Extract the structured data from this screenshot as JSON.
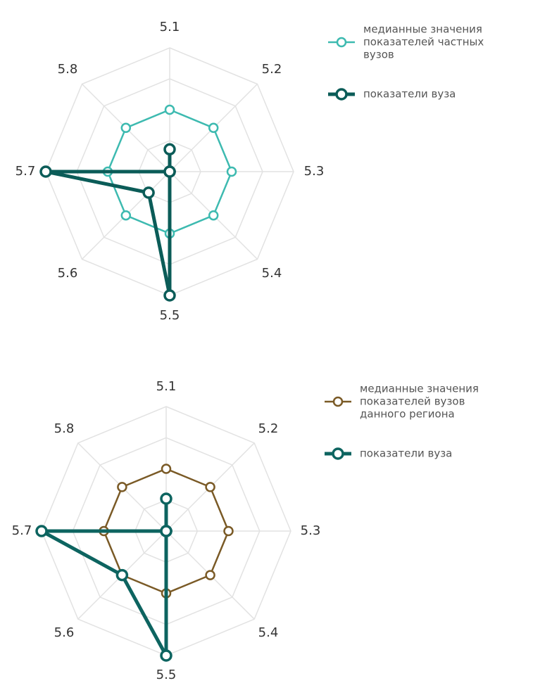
{
  "chart_data": [
    {
      "type": "radar",
      "categories": [
        "5.1",
        "5.2",
        "5.3",
        "5.4",
        "5.5",
        "5.6",
        "5.7",
        "5.8"
      ],
      "rlim": [
        0,
        5
      ],
      "grid": true,
      "legend_position": "top-right",
      "series": [
        {
          "name": "медианные значения показателей частных вузов",
          "name_lines": [
            "медианные значения",
            "показателей частных",
            "вузов"
          ],
          "values": [
            2.5,
            2.5,
            2.5,
            2.5,
            2.5,
            2.5,
            2.5,
            2.5
          ],
          "color": "#3dbab0",
          "line_width": 2.5,
          "marker_fill": "#ffffff"
        },
        {
          "name": "показатели вуза",
          "name_lines": [
            "показатели вуза"
          ],
          "values": [
            0.9,
            0.0,
            0.0,
            0.0,
            5.0,
            1.2,
            5.0,
            0.0
          ],
          "color": "#0b5c58",
          "line_width": 5,
          "marker_fill": "#ffffff"
        }
      ]
    },
    {
      "type": "radar",
      "categories": [
        "5.1",
        "5.2",
        "5.3",
        "5.4",
        "5.5",
        "5.6",
        "5.7",
        "5.8"
      ],
      "rlim": [
        0,
        5
      ],
      "grid": true,
      "legend_position": "top-right",
      "series": [
        {
          "name": "медианные значения показателей вузов данного региона",
          "name_lines": [
            "медианные значения",
            "показателей вузов",
            "данного региона"
          ],
          "values": [
            2.5,
            2.5,
            2.5,
            2.5,
            2.5,
            2.5,
            2.5,
            2.5
          ],
          "color": "#7a5a26",
          "line_width": 2.5,
          "marker_fill": "#ffffff"
        },
        {
          "name": "показатели вуза",
          "name_lines": [
            "показатели вуза"
          ],
          "values": [
            1.3,
            0.0,
            0.0,
            0.0,
            5.0,
            2.5,
            5.0,
            0.0
          ],
          "color": "#0d6460",
          "line_width": 5,
          "marker_fill": "#ffffff"
        }
      ]
    }
  ]
}
